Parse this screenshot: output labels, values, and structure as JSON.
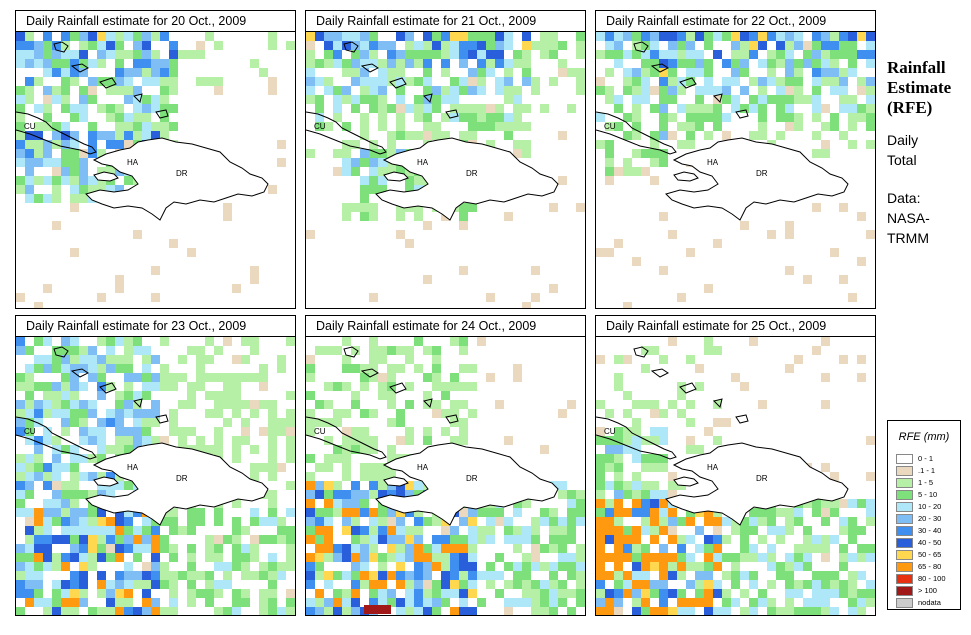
{
  "panels": [
    {
      "title": "Daily Rainfall estimate for  20 Oct., 2009",
      "seed": 11,
      "profile": "north"
    },
    {
      "title": "Daily Rainfall estimate for  21 Oct., 2009",
      "seed": 23,
      "profile": "north2"
    },
    {
      "title": "Daily Rainfall estimate for  22 Oct., 2009",
      "seed": 37,
      "profile": "northeast"
    },
    {
      "title": "Daily Rainfall estimate for  23 Oct., 2009",
      "seed": 41,
      "profile": "wide"
    },
    {
      "title": "Daily Rainfall estimate for  24 Oct., 2009",
      "seed": 53,
      "profile": "south"
    },
    {
      "title": "Daily Rainfall estimate for  25 Oct., 2009",
      "seed": 67,
      "profile": "southwest"
    }
  ],
  "country_labels": {
    "cuba": "CU",
    "haiti": "HA",
    "dominican_republic": "DR"
  },
  "sidebar": {
    "title_line1": "Rainfall",
    "title_line2": "Estimate",
    "title_line3": "(RFE)",
    "daily_line1": "Daily",
    "daily_line2": "Total",
    "data_line1": "Data:",
    "data_line2": "NASA-",
    "data_line3": "TRMM"
  },
  "legend": {
    "title": "RFE (mm)",
    "items": [
      {
        "label": "0 - 1",
        "color": "#ffffff"
      },
      {
        "label": ".1 - 1",
        "color": "#ead9bf"
      },
      {
        "label": "1 - 5",
        "color": "#b6f0a6"
      },
      {
        "label": "5 - 10",
        "color": "#7ee07a"
      },
      {
        "label": "10 - 20",
        "color": "#aee8f8"
      },
      {
        "label": "20 - 30",
        "color": "#7fbef4"
      },
      {
        "label": "30 - 40",
        "color": "#3f8ff0"
      },
      {
        "label": "40 - 50",
        "color": "#2a5fdc"
      },
      {
        "label": "50 - 65",
        "color": "#ffd850"
      },
      {
        "label": "65 - 80",
        "color": "#ff9a10"
      },
      {
        "label": "80 - 100",
        "color": "#e63010"
      },
      {
        "label": "> 100",
        "color": "#a01818"
      },
      {
        "label": "nodata",
        "color": "#cccccc"
      }
    ]
  }
}
